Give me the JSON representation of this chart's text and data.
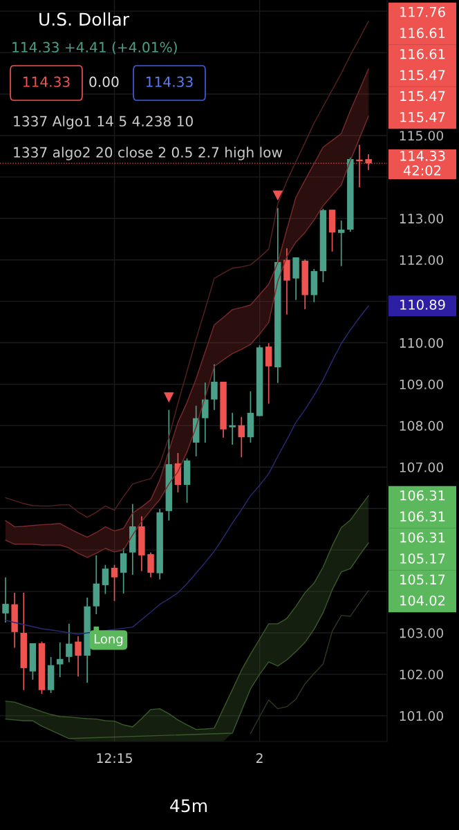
{
  "chart_data": {
    "type": "candlestick",
    "title": "U.S. Dollar",
    "subtitle": "114.33 +4.41 (+4.01%)",
    "categories": [
      null,
      null,
      null,
      null,
      null,
      null,
      null,
      null,
      null,
      null,
      null,
      null,
      "12:15",
      null,
      null,
      null,
      null,
      null,
      null,
      null,
      null,
      null,
      null,
      null,
      null,
      null,
      null,
      null,
      "2",
      null,
      null,
      null,
      null,
      null,
      null,
      null,
      null,
      null,
      null,
      null,
      null
    ],
    "ohlc": [
      [
        103.47,
        104.34,
        103.25,
        103.7
      ],
      [
        103.69,
        103.97,
        102.64,
        103.02
      ],
      [
        103.0,
        103.97,
        101.62,
        102.15
      ],
      [
        102.07,
        102.75,
        101.87,
        102.75
      ],
      [
        102.75,
        102.79,
        101.53,
        101.62
      ],
      [
        101.62,
        102.42,
        101.55,
        102.22
      ],
      [
        102.24,
        102.77,
        101.93,
        102.37
      ],
      [
        102.42,
        103.22,
        102.29,
        102.74
      ],
      [
        102.79,
        102.92,
        101.95,
        102.45
      ],
      [
        102.45,
        103.85,
        101.8,
        103.64
      ],
      [
        103.64,
        104.87,
        103.45,
        104.19
      ],
      [
        104.15,
        104.64,
        103.94,
        104.55
      ],
      [
        104.57,
        104.64,
        103.77,
        104.34
      ],
      [
        104.45,
        105.04,
        103.95,
        104.92
      ],
      [
        104.94,
        106.11,
        104.4,
        105.57
      ],
      [
        105.57,
        105.81,
        104.49,
        104.87
      ],
      [
        104.9,
        104.94,
        104.34,
        104.45
      ],
      [
        104.44,
        105.99,
        104.29,
        105.91
      ],
      [
        105.94,
        108.38,
        105.71,
        107.07
      ],
      [
        107.09,
        107.34,
        106.39,
        106.57
      ],
      [
        106.57,
        107.21,
        106.14,
        107.16
      ],
      [
        107.59,
        108.48,
        107.26,
        108.18
      ],
      [
        108.18,
        109.04,
        107.59,
        108.63
      ],
      [
        108.63,
        109.48,
        108.38,
        109.06
      ],
      [
        109.06,
        109.06,
        107.71,
        107.91
      ],
      [
        107.96,
        108.31,
        107.54,
        108.01
      ],
      [
        108.01,
        108.21,
        107.24,
        107.72
      ],
      [
        107.72,
        108.83,
        107.59,
        108.31
      ],
      [
        108.23,
        109.94,
        108.23,
        109.89
      ],
      [
        109.91,
        109.99,
        108.53,
        109.43
      ],
      [
        109.41,
        113.25,
        109.03,
        111.95
      ],
      [
        112.0,
        112.28,
        110.68,
        111.5
      ],
      [
        111.55,
        112.06,
        111.03,
        112.06
      ],
      [
        111.98,
        112.01,
        110.81,
        111.15
      ],
      [
        111.15,
        111.78,
        110.98,
        111.73
      ],
      [
        111.73,
        113.23,
        111.46,
        113.2
      ],
      [
        113.21,
        113.21,
        112.2,
        112.66
      ],
      [
        112.65,
        112.95,
        111.85,
        112.73
      ],
      [
        112.73,
        114.47,
        112.68,
        114.43
      ],
      [
        114.42,
        114.78,
        113.75,
        114.38
      ],
      [
        114.43,
        114.55,
        114.17,
        114.33
      ]
    ],
    "colors": [
      "#4ba08a",
      "#ef5350",
      "#ef5350",
      "#4ba08a",
      "#ef5350",
      "#4ba08a",
      "#4ba08a",
      "#4ba08a",
      "#ef5350",
      "#4ba08a",
      "#4ba08a",
      "#4ba08a",
      "#ef5350",
      "#4ba08a",
      "#4ba08a",
      "#ef5350",
      "#ef5350",
      "#4ba08a",
      "#4ba08a",
      "#ef5350",
      "#4ba08a",
      "#4ba08a",
      "#4ba08a",
      "#4ba08a",
      "#ef5350",
      "#4ba08a",
      "#ef5350",
      "#4ba08a",
      "#4ba08a",
      "#ef5350",
      "#4ba08a",
      "#ef5350",
      "#4ba08a",
      "#ef5350",
      "#4ba08a",
      "#4ba08a",
      "#ef5350",
      "#4ba08a",
      "#4ba08a",
      "#ef5350",
      "#ef5350"
    ],
    "series": [
      {
        "type": "line",
        "color": "#7a2a2a",
        "values": [
          105.24,
          105.14,
          105.14,
          105.14,
          105.12,
          105.12,
          105.12,
          105.05,
          104.92,
          104.82,
          104.92,
          105.04,
          104.95,
          105.0,
          105.36,
          105.69,
          105.96,
          106.22,
          106.59,
          106.89,
          107.37,
          107.97,
          108.69,
          109.43,
          109.59,
          109.74,
          109.84,
          109.96,
          110.21,
          110.49,
          111.48,
          112.08,
          112.43,
          112.66,
          112.96,
          113.31,
          113.56,
          113.81,
          114.4,
          114.93,
          115.47
        ]
      },
      {
        "type": "line",
        "color": "#7a2a2a",
        "values": [
          105.71,
          105.56,
          105.57,
          105.59,
          105.61,
          105.62,
          105.64,
          105.52,
          105.41,
          105.31,
          105.42,
          105.56,
          105.46,
          105.52,
          105.89,
          106.04,
          106.21,
          106.69,
          107.39,
          108.08,
          108.56,
          109.13,
          109.78,
          110.43,
          110.61,
          110.8,
          110.85,
          110.91,
          111.16,
          111.41,
          111.93,
          112.73,
          113.51,
          113.92,
          114.32,
          114.72,
          114.88,
          115.05,
          115.6,
          116.1,
          116.61
        ],
        "upper": [
          105.71,
          105.56,
          105.57,
          105.59,
          105.61,
          105.62,
          105.64,
          105.52,
          105.41,
          105.31,
          105.42,
          105.56,
          105.46,
          105.52,
          105.89,
          106.04,
          106.21,
          106.69,
          107.39,
          108.08,
          108.56,
          109.13,
          109.78,
          110.43,
          110.61,
          110.8,
          110.85,
          110.91,
          111.16,
          111.41,
          111.93,
          112.73,
          113.51,
          113.92,
          114.32,
          114.72,
          114.88,
          115.05,
          115.6,
          116.1,
          116.61
        ],
        "lower": [
          105.24,
          105.14,
          105.14,
          105.14,
          105.12,
          105.12,
          105.12,
          105.05,
          104.92,
          104.82,
          104.92,
          105.04,
          104.95,
          105.0,
          105.36,
          105.69,
          105.96,
          106.22,
          106.59,
          106.89,
          107.37,
          107.97,
          108.69,
          109.43,
          109.59,
          109.74,
          109.84,
          109.96,
          110.21,
          110.49,
          111.48,
          112.08,
          112.43,
          112.66,
          112.96,
          113.31,
          113.56,
          113.81,
          114.4,
          114.93,
          115.47
        ]
      },
      {
        "type": "line",
        "color": "#5a2222",
        "values": [
          106.26,
          106.19,
          106.12,
          106.07,
          106.06,
          106.06,
          106.09,
          106.09,
          105.92,
          105.79,
          105.91,
          106.06,
          105.96,
          106.29,
          106.59,
          106.66,
          106.72,
          107.07,
          107.72,
          108.54,
          109.31,
          110.09,
          110.81,
          111.55,
          111.68,
          111.8,
          111.83,
          111.88,
          112.06,
          112.26,
          113.35,
          113.9,
          114.37,
          114.83,
          115.3,
          115.7,
          116.1,
          116.5,
          116.94,
          117.34,
          117.76
        ]
      },
      {
        "type": "line",
        "color": "#2a2a7a",
        "values": [
          103.3,
          103.25,
          103.2,
          103.15,
          103.1,
          103.07,
          103.04,
          103.0,
          102.97,
          null,
          null,
          null,
          null,
          null,
          103.14,
          103.32,
          103.5,
          103.69,
          103.82,
          103.97,
          104.19,
          104.44,
          104.7,
          104.97,
          105.3,
          105.65,
          105.97,
          106.31,
          106.56,
          106.84,
          107.26,
          107.66,
          108.08,
          108.39,
          108.73,
          109.11,
          109.56,
          109.98,
          110.31,
          110.61,
          110.89
        ]
      },
      {
        "type": "line",
        "color": "#3a5a2a",
        "values": [
          100.92,
          100.9,
          100.88,
          100.88,
          100.75,
          100.65,
          100.55,
          100.45,
          null,
          null,
          null,
          null,
          null,
          null,
          null,
          null,
          null,
          null,
          null,
          null,
          null,
          null,
          null,
          null,
          null,
          100.58,
          101.12,
          101.65,
          102.0,
          102.3,
          102.2,
          102.35,
          102.55,
          102.77,
          103.09,
          103.49,
          104.04,
          104.47,
          104.55,
          104.87,
          105.17
        ]
      },
      {
        "type": "line",
        "color": "#3a5a2a",
        "values": [
          101.35,
          101.33,
          101.25,
          101.18,
          101.1,
          101.03,
          100.98,
          100.97,
          100.95,
          100.93,
          100.92,
          100.88,
          100.87,
          100.78,
          100.73,
          100.93,
          101.15,
          101.17,
          101.05,
          100.9,
          100.78,
          100.67,
          100.68,
          100.7,
          101.17,
          101.63,
          102.1,
          102.49,
          102.85,
          103.22,
          103.22,
          103.35,
          103.64,
          103.97,
          104.2,
          104.59,
          105.1,
          105.54,
          105.72,
          106.02,
          106.31
        ],
        "upper": [
          101.35,
          101.33,
          101.25,
          101.18,
          101.1,
          101.03,
          100.98,
          100.97,
          100.95,
          100.93,
          100.92,
          100.88,
          100.87,
          100.78,
          100.73,
          100.93,
          101.15,
          101.17,
          101.05,
          100.9,
          100.78,
          100.67,
          100.68,
          100.7,
          101.17,
          101.63,
          102.1,
          102.49,
          102.85,
          103.22,
          103.22,
          103.35,
          103.64,
          103.97,
          104.2,
          104.59,
          105.1,
          105.54,
          105.72,
          106.02,
          106.31
        ],
        "lower": [
          100.92,
          100.9,
          100.88,
          100.88,
          100.75,
          100.65,
          100.55,
          100.45,
          100.38,
          100.38,
          100.38,
          100.38,
          100.38,
          100.38,
          100.38,
          100.38,
          100.38,
          100.38,
          100.38,
          100.38,
          100.38,
          100.38,
          100.38,
          100.38,
          100.38,
          100.58,
          101.12,
          101.65,
          102.0,
          102.3,
          102.2,
          102.35,
          102.55,
          102.77,
          103.09,
          103.49,
          104.04,
          104.47,
          104.55,
          104.87,
          105.17
        ]
      },
      {
        "type": "line",
        "color": "#2a3a22",
        "values": [
          null,
          null,
          null,
          null,
          null,
          null,
          null,
          null,
          null,
          null,
          null,
          null,
          null,
          null,
          null,
          null,
          null,
          null,
          null,
          null,
          null,
          null,
          null,
          null,
          null,
          null,
          null,
          100.57,
          100.98,
          101.38,
          101.17,
          101.22,
          101.4,
          101.77,
          102.02,
          102.25,
          103.04,
          103.42,
          103.4,
          103.72,
          104.02
        ]
      },
      {
        "type": "scatter",
        "marker": "triangle",
        "color": "#ef5350",
        "values": [
          null,
          null,
          null,
          null,
          null,
          null,
          null,
          null,
          null,
          null,
          null,
          null,
          null,
          null,
          null,
          null,
          null,
          null,
          108.68,
          null,
          null,
          null,
          null,
          null,
          null,
          null,
          null,
          null,
          null,
          null,
          113.55,
          null,
          null,
          null,
          null,
          null,
          null,
          null,
          null,
          null,
          null
        ]
      },
      {
        "type": "scatter",
        "marker": "square",
        "color": "#5cb85c",
        "values": [
          null,
          null,
          null,
          null,
          null,
          null,
          null,
          null,
          null,
          null,
          103.09,
          null,
          null,
          null,
          null,
          null,
          null,
          null,
          null,
          null,
          null,
          null,
          null,
          null,
          null,
          null,
          null,
          null,
          null,
          null,
          null,
          null,
          null,
          null,
          null,
          null,
          null,
          null,
          null,
          null,
          null
        ],
        "value_labels": [
          null,
          null,
          null,
          null,
          null,
          null,
          null,
          null,
          null,
          null,
          "Long",
          null,
          null,
          null,
          null,
          null,
          null,
          null,
          null,
          null,
          null,
          null,
          null,
          null,
          null,
          null,
          null,
          null,
          null,
          null,
          null,
          null,
          null,
          null,
          null,
          null,
          null,
          null,
          null,
          null,
          null
        ]
      }
    ],
    "ylim": [
      100.38,
      118.27
    ],
    "yticks": [
      {
        "value": 101,
        "label": "101.00"
      },
      {
        "value": 102,
        "label": "102.00"
      },
      {
        "value": 103,
        "label": "103.00"
      },
      {
        "value": 104,
        "label": null
      },
      {
        "value": 105,
        "label": null
      },
      {
        "value": 106,
        "label": null
      },
      {
        "value": 107,
        "label": "107.00"
      },
      {
        "value": 108,
        "label": "108.00"
      },
      {
        "value": 109,
        "label": "109.00"
      },
      {
        "value": 110,
        "label": "110.00"
      },
      {
        "value": 111,
        "label": null
      },
      {
        "value": 112,
        "label": "112.00"
      },
      {
        "value": 113,
        "label": "113.00"
      },
      {
        "value": 114,
        "label": null
      },
      {
        "value": 115,
        "label": "115.00"
      },
      {
        "value": 116,
        "label": null
      },
      {
        "value": 117,
        "label": null
      },
      {
        "value": 118,
        "label": null
      }
    ],
    "grid": true,
    "ref_lines": [
      {
        "axis": "y",
        "value": 114.33,
        "label": null,
        "color": "#ef5350",
        "line_style": "dotted"
      }
    ],
    "annotations": [
      "114.33",
      "0.00",
      "114.33",
      "1337 Algo1 14 5 4.238 10",
      "1337 algo2 20 close 2 0.5 2.7 high low",
      "117.76",
      "116.61",
      "116.61",
      "115.47",
      "115.47",
      "115.47",
      "114.33",
      "42:02",
      "110.89",
      "106.31",
      "106.31",
      "106.31",
      "105.17",
      "105.17",
      "104.02",
      "45m"
    ]
  }
}
